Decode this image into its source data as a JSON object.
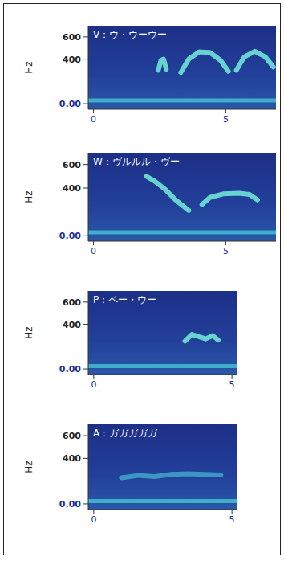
{
  "chart_data": [
    {
      "type": "spectrogram",
      "title": "V：ウ・ウーウー",
      "y_label": "Hz",
      "xlim": [
        -0.2,
        6.9
      ],
      "ylim": [
        -50,
        700
      ],
      "xticks": [
        0,
        5
      ],
      "yticks": [
        {
          "value": 0,
          "label": "0.00"
        },
        400,
        600
      ],
      "series": [
        {
          "color": "#3fb8d0",
          "x": [
            -0.2,
            6.9
          ],
          "values": [
            30,
            30
          ]
        },
        {
          "color": "#6fe3d6",
          "x": [
            2.45,
            2.55,
            2.65,
            2.75
          ],
          "values": [
            300,
            390,
            400,
            310
          ]
        },
        {
          "color": "#6fe3d6",
          "x": [
            3.3,
            3.6,
            4.0,
            4.4,
            4.8,
            5.1
          ],
          "values": [
            280,
            400,
            465,
            460,
            390,
            290
          ]
        },
        {
          "color": "#6fe3d6",
          "x": [
            5.4,
            5.7,
            6.1,
            6.5,
            6.8
          ],
          "values": [
            300,
            420,
            470,
            420,
            330
          ]
        }
      ]
    },
    {
      "type": "spectrogram",
      "title": "W：ヴルルル・ヴー",
      "y_label": "Hz",
      "xlim": [
        -0.2,
        6.9
      ],
      "ylim": [
        -50,
        700
      ],
      "xticks": [
        0,
        5
      ],
      "yticks": [
        {
          "value": 0,
          "label": "0.00"
        },
        400,
        600
      ],
      "series": [
        {
          "color": "#3fb8d0",
          "x": [
            -0.2,
            6.9
          ],
          "values": [
            25,
            25
          ]
        },
        {
          "color": "#6fe3d6",
          "x": [
            2.0,
            2.3,
            2.7,
            3.1,
            3.6
          ],
          "values": [
            500,
            460,
            390,
            300,
            210
          ]
        },
        {
          "color": "#6fe3d6",
          "x": [
            4.1,
            4.4,
            4.9,
            5.5,
            5.9,
            6.2
          ],
          "values": [
            260,
            320,
            350,
            355,
            345,
            300
          ]
        }
      ]
    },
    {
      "type": "spectrogram",
      "title": "P：ペー・ウー",
      "y_label": "Hz",
      "xlim": [
        -0.2,
        5.2
      ],
      "ylim": [
        -50,
        700
      ],
      "xticks": [
        0,
        5
      ],
      "yticks": [
        {
          "value": 0,
          "label": "0.00"
        },
        400,
        600
      ],
      "series": [
        {
          "color": "#3fb8d0",
          "x": [
            -0.2,
            5.2
          ],
          "values": [
            25,
            25
          ]
        },
        {
          "color": "#6fe3d6",
          "x": [
            3.3,
            3.55,
            3.8,
            4.05,
            4.3,
            4.5
          ],
          "values": [
            250,
            310,
            290,
            270,
            300,
            260
          ]
        }
      ]
    },
    {
      "type": "spectrogram",
      "title": "A：ガガガガガ",
      "y_label": "Hz",
      "xlim": [
        -0.2,
        5.2
      ],
      "ylim": [
        -50,
        700
      ],
      "xticks": [
        0,
        5
      ],
      "yticks": [
        {
          "value": 0,
          "label": "0.00"
        },
        400,
        600
      ],
      "series": [
        {
          "color": "#3fb8d0",
          "x": [
            -0.2,
            5.2
          ],
          "values": [
            25,
            25
          ]
        },
        {
          "color": "#3f9fc8",
          "x": [
            1.0,
            1.6,
            2.2,
            2.8,
            3.4,
            4.0,
            4.6
          ],
          "values": [
            230,
            250,
            240,
            260,
            265,
            260,
            255
          ]
        }
      ]
    }
  ]
}
